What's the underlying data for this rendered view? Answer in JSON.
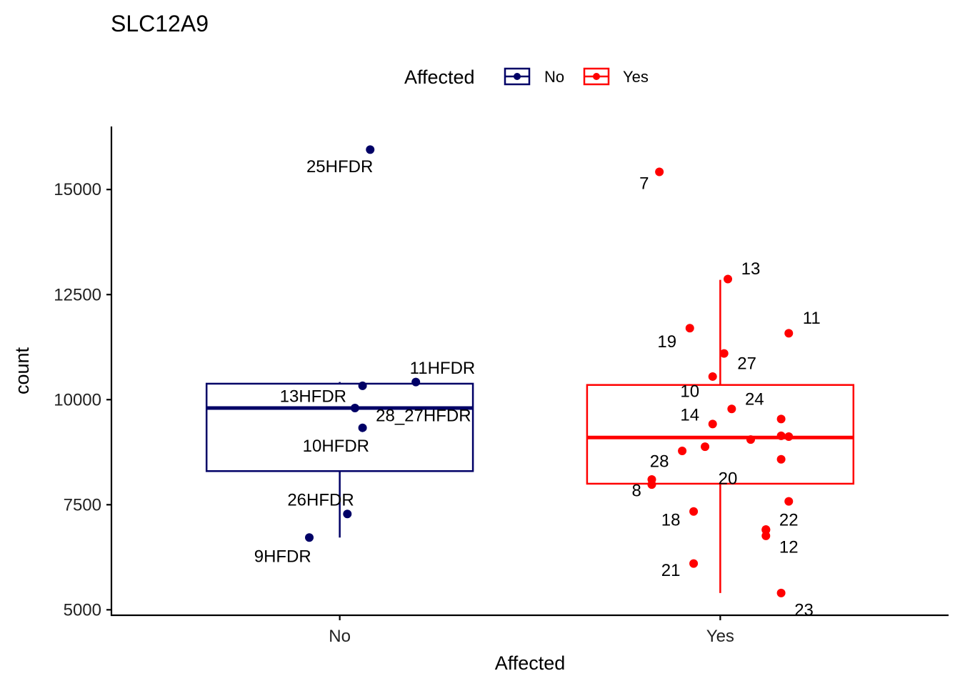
{
  "chart_data": {
    "type": "boxplot",
    "title": "SLC12A9",
    "xlabel": "Affected",
    "ylabel": "count",
    "ylim": [
      4870,
      16500
    ],
    "yticks": [
      5000,
      7500,
      10000,
      12500,
      15000
    ],
    "ytick_labels": [
      "5000",
      "7500",
      "10000",
      "12500",
      "15000"
    ],
    "categories": [
      "No",
      "Yes"
    ],
    "legend": {
      "title": "Affected",
      "position": "top",
      "entries": [
        {
          "label": "No",
          "color": "#000066"
        },
        {
          "label": "Yes",
          "color": "#ff0000"
        }
      ]
    },
    "boxes": [
      {
        "group": "No",
        "color": "#000066",
        "q1": 8300,
        "median": 9800,
        "q3": 10380,
        "whisker_low": 6720,
        "whisker_high": 10420
      },
      {
        "group": "Yes",
        "color": "#ff0000",
        "q1": 8000,
        "median": 9100,
        "q3": 10350,
        "whisker_low": 5400,
        "whisker_high": 12850
      }
    ],
    "points": [
      {
        "group": "No",
        "jitter": 0.08,
        "value": 15950,
        "label": "25HFDR",
        "label_dx": -0.08,
        "label_value": 15550
      },
      {
        "group": "No",
        "jitter": 0.2,
        "value": 10420,
        "label": "11HFDR",
        "label_dx": 0.07,
        "label_value": 10750
      },
      {
        "group": "No",
        "jitter": 0.06,
        "value": 10330,
        "label": "13HFDR",
        "label_dx": -0.13,
        "label_value": 10080
      },
      {
        "group": "No",
        "jitter": 0.04,
        "value": 9800,
        "label": "28_27HFDR",
        "label_dx": 0.18,
        "label_value": 9620
      },
      {
        "group": "No",
        "jitter": 0.06,
        "value": 9330,
        "label": "10HFDR",
        "label_dx": -0.07,
        "label_value": 8900
      },
      {
        "group": "No",
        "jitter": 0.02,
        "value": 7280,
        "label": "26HFDR",
        "label_dx": -0.07,
        "label_value": 7620
      },
      {
        "group": "No",
        "jitter": -0.08,
        "value": 6720,
        "label": "9HFDR",
        "label_dx": -0.07,
        "label_value": 6270
      },
      {
        "group": "Yes",
        "jitter": -0.16,
        "value": 15420,
        "label": "7",
        "label_dx": -0.04,
        "label_value": 15150
      },
      {
        "group": "Yes",
        "jitter": 0.02,
        "value": 12870,
        "label": "13",
        "label_dx": 0.06,
        "label_value": 13120
      },
      {
        "group": "Yes",
        "jitter": 0.18,
        "value": 11580,
        "label": "11",
        "label_dx": 0.06,
        "label_value": 11940
      },
      {
        "group": "Yes",
        "jitter": -0.08,
        "value": 11700,
        "label": "19",
        "label_dx": -0.06,
        "label_value": 11380
      },
      {
        "group": "Yes",
        "jitter": 0.01,
        "value": 11100,
        "label": "27",
        "label_dx": 0.06,
        "label_value": 10860
      },
      {
        "group": "Yes",
        "jitter": -0.02,
        "value": 10550,
        "label": "10",
        "label_dx": -0.06,
        "label_value": 10200
      },
      {
        "group": "Yes",
        "jitter": 0.03,
        "value": 9780,
        "label": "24",
        "label_dx": 0.06,
        "label_value": 10010
      },
      {
        "group": "Yes",
        "jitter": -0.02,
        "value": 9420,
        "label": "14",
        "label_dx": -0.06,
        "label_value": 9640
      },
      {
        "group": "Yes",
        "jitter": -0.1,
        "value": 8780,
        "label": "28",
        "label_dx": -0.06,
        "label_value": 8530
      },
      {
        "group": "Yes",
        "jitter": -0.04,
        "value": 8880,
        "label": "20",
        "label_dx": 0.06,
        "label_value": 8130
      },
      {
        "group": "Yes",
        "jitter": -0.18,
        "value": 7980,
        "label": "8",
        "label_dx": -0.04,
        "label_value": 7840
      },
      {
        "group": "Yes",
        "jitter": 0.12,
        "value": 6910,
        "label": "22",
        "label_dx": 0.06,
        "label_value": 7140
      },
      {
        "group": "Yes",
        "jitter": -0.07,
        "value": 7340,
        "label": "18",
        "label_dx": -0.06,
        "label_value": 7140
      },
      {
        "group": "Yes",
        "jitter": 0.12,
        "value": 6760,
        "label": "12",
        "label_dx": 0.06,
        "label_value": 6490
      },
      {
        "group": "Yes",
        "jitter": -0.07,
        "value": 6100,
        "label": "21",
        "label_dx": -0.06,
        "label_value": 5940
      },
      {
        "group": "Yes",
        "jitter": 0.16,
        "value": 5400,
        "label": "23",
        "label_dx": 0.06,
        "label_value": 5000
      },
      {
        "group": "Yes",
        "jitter": 0.08,
        "value": 9050,
        "label": "",
        "label_dx": 0,
        "label_value": 0
      },
      {
        "group": "Yes",
        "jitter": 0.16,
        "value": 9540,
        "label": "",
        "label_dx": 0,
        "label_value": 0
      },
      {
        "group": "Yes",
        "jitter": 0.16,
        "value": 9140,
        "label": "",
        "label_dx": 0,
        "label_value": 0
      },
      {
        "group": "Yes",
        "jitter": 0.18,
        "value": 9120,
        "label": "",
        "label_dx": 0,
        "label_value": 0
      },
      {
        "group": "Yes",
        "jitter": 0.16,
        "value": 8580,
        "label": "",
        "label_dx": 0,
        "label_value": 0
      },
      {
        "group": "Yes",
        "jitter": 0.18,
        "value": 7580,
        "label": "",
        "label_dx": 0,
        "label_value": 0
      },
      {
        "group": "Yes",
        "jitter": -0.18,
        "value": 8100,
        "label": "",
        "label_dx": 0,
        "label_value": 0
      },
      {
        "group": "Yes",
        "jitter": 0.12,
        "value": 6900,
        "label": "",
        "label_dx": 0,
        "label_value": 0
      }
    ]
  }
}
